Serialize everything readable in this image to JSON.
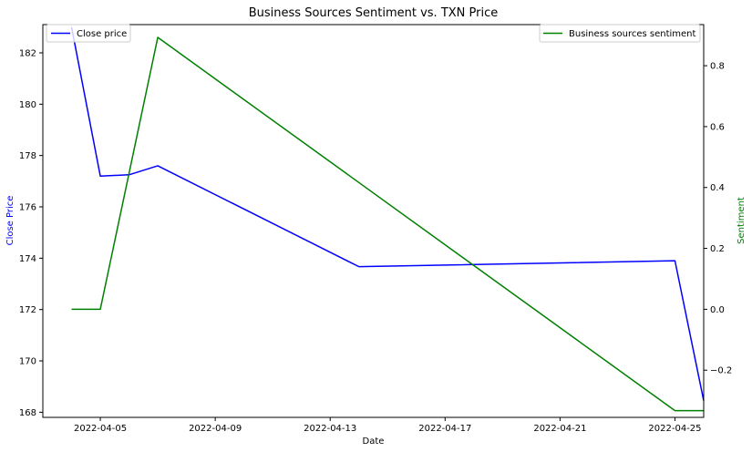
{
  "chart_data": {
    "type": "line",
    "title": "Business Sources Sentiment vs. TXN Price",
    "xlabel": "Date",
    "ylabel_left": "Close Price",
    "ylabel_right": "Sentiment",
    "x_ticks": [
      "2022-04-05",
      "2022-04-09",
      "2022-04-13",
      "2022-04-17",
      "2022-04-21",
      "2022-04-25"
    ],
    "x_range": [
      "2022-04-03",
      "2022-04-26"
    ],
    "y_left_ticks": [
      168,
      170,
      172,
      174,
      176,
      178,
      180,
      182
    ],
    "y_left_range": [
      167.8,
      183.1
    ],
    "y_right_ticks": [
      -0.2,
      0.0,
      0.2,
      0.4,
      0.6,
      0.8
    ],
    "y_right_range": [
      -0.355,
      0.935
    ],
    "grid": false,
    "series": [
      {
        "name": "Close price",
        "axis": "left",
        "color": "#0000ff",
        "x": [
          "2022-04-04",
          "2022-04-05",
          "2022-04-06",
          "2022-04-07",
          "2022-04-14",
          "2022-04-25",
          "2022-04-26"
        ],
        "values": [
          183.0,
          177.2,
          177.25,
          177.6,
          173.67,
          173.9,
          168.45
        ]
      },
      {
        "name": "Business sources sentiment",
        "axis": "right",
        "color": "#008000",
        "x": [
          "2022-04-04",
          "2022-04-05",
          "2022-04-07",
          "2022-04-25",
          "2022-04-26"
        ],
        "values": [
          0.0,
          0.0,
          0.893,
          -0.333,
          -0.333
        ]
      }
    ],
    "legend_left": "upper left",
    "legend_right": "upper right"
  }
}
